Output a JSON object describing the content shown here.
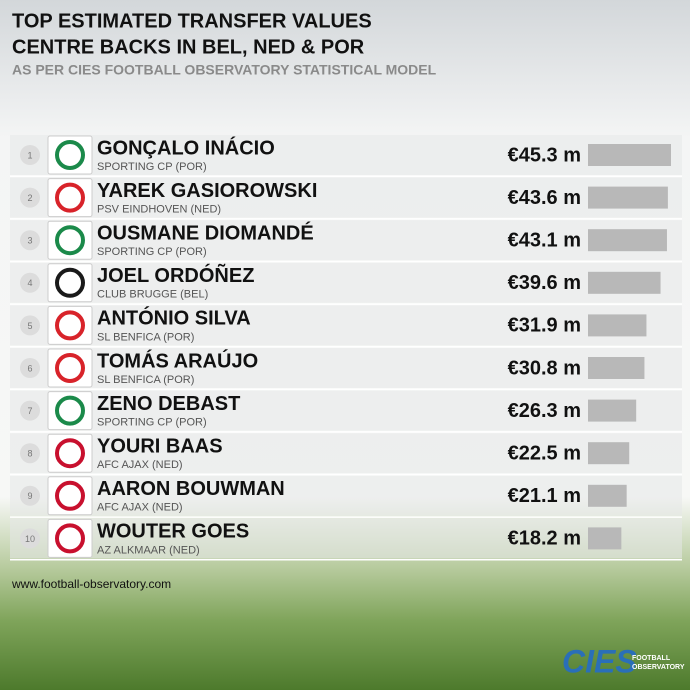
{
  "chart_data": {
    "type": "bar",
    "title": "TOP ESTIMATED TRANSFER VALUES",
    "subtitle": "CENTRE BACKS IN BEL, NED & POR",
    "note": "AS PER CIES FOOTBALL OBSERVATORY STATISTICAL MODEL",
    "ranks": [
      1,
      2,
      3,
      4,
      5,
      6,
      7,
      8,
      9,
      10
    ],
    "categories": [
      "GONÇALO INÁCIO",
      "YAREK GASIOROWSKI",
      "OUSMANE DIOMANDÉ",
      "JOEL ORDÓÑEZ",
      "ANTÓNIO SILVA",
      "TOMÁS ARAÚJO",
      "ZENO DEBAST",
      "YOURI BAAS",
      "AARON BOUWMAN",
      "WOUTER GOES"
    ],
    "clubs": [
      "SPORTING CP (POR)",
      "PSV EINDHOVEN (NED)",
      "SPORTING CP (POR)",
      "CLUB BRUGGE (BEL)",
      "SL BENFICA (POR)",
      "SL BENFICA (POR)",
      "SPORTING CP (POR)",
      "AFC AJAX (NED)",
      "AFC AJAX (NED)",
      "AZ ALKMAAR (NED)"
    ],
    "values": [
      45.3,
      43.6,
      43.1,
      39.6,
      31.9,
      30.8,
      26.3,
      22.5,
      21.1,
      18.2
    ],
    "value_labels": [
      "€45.3 m",
      "€43.6 m",
      "€43.1 m",
      "€39.6 m",
      "€31.9 m",
      "€30.8 m",
      "€26.3 m",
      "€22.5 m",
      "€21.1 m",
      "€18.2 m"
    ],
    "color": "#b8b8b8"
  },
  "footer": {
    "website": "www.football-observatory.com",
    "logo": "CIES",
    "logo_line1": "FOOTBALL",
    "logo_line2": "OBSERVATORY"
  }
}
